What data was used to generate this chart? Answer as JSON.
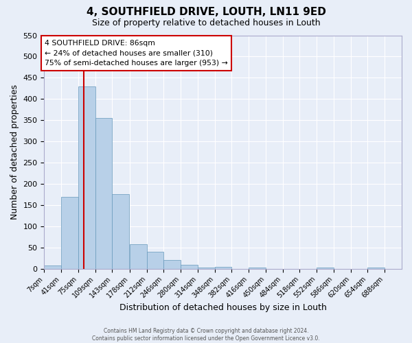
{
  "title": "4, SOUTHFIELD DRIVE, LOUTH, LN11 9ED",
  "subtitle": "Size of property relative to detached houses in Louth",
  "xlabel": "Distribution of detached houses by size in Louth",
  "ylabel": "Number of detached properties",
  "bar_color": "#b8d0e8",
  "bar_edge_color": "#6699bb",
  "background_color": "#e8eef8",
  "grid_color": "#ffffff",
  "bin_edges": [
    7,
    41,
    75,
    109,
    143,
    178,
    212,
    246,
    280,
    314,
    348,
    382,
    416,
    450,
    484,
    518,
    552,
    586,
    620,
    654,
    688
  ],
  "bin_labels": [
    "7sqm",
    "41sqm",
    "75sqm",
    "109sqm",
    "143sqm",
    "178sqm",
    "212sqm",
    "246sqm",
    "280sqm",
    "314sqm",
    "348sqm",
    "382sqm",
    "416sqm",
    "450sqm",
    "484sqm",
    "518sqm",
    "552sqm",
    "586sqm",
    "620sqm",
    "654sqm",
    "688sqm"
  ],
  "bar_heights": [
    8,
    170,
    430,
    356,
    175,
    57,
    40,
    20,
    10,
    2,
    5,
    0,
    3,
    0,
    0,
    0,
    2,
    0,
    0,
    2
  ],
  "vline_x": 86,
  "vline_color": "#cc0000",
  "ylim": [
    0,
    550
  ],
  "yticks": [
    0,
    50,
    100,
    150,
    200,
    250,
    300,
    350,
    400,
    450,
    500,
    550
  ],
  "annotation_title": "4 SOUTHFIELD DRIVE: 86sqm",
  "annotation_line1": "← 24% of detached houses are smaller (310)",
  "annotation_line2": "75% of semi-detached houses are larger (953) →",
  "annotation_box_color": "#ffffff",
  "annotation_border_color": "#cc0000",
  "footer_line1": "Contains HM Land Registry data © Crown copyright and database right 2024.",
  "footer_line2": "Contains public sector information licensed under the Open Government Licence v3.0."
}
